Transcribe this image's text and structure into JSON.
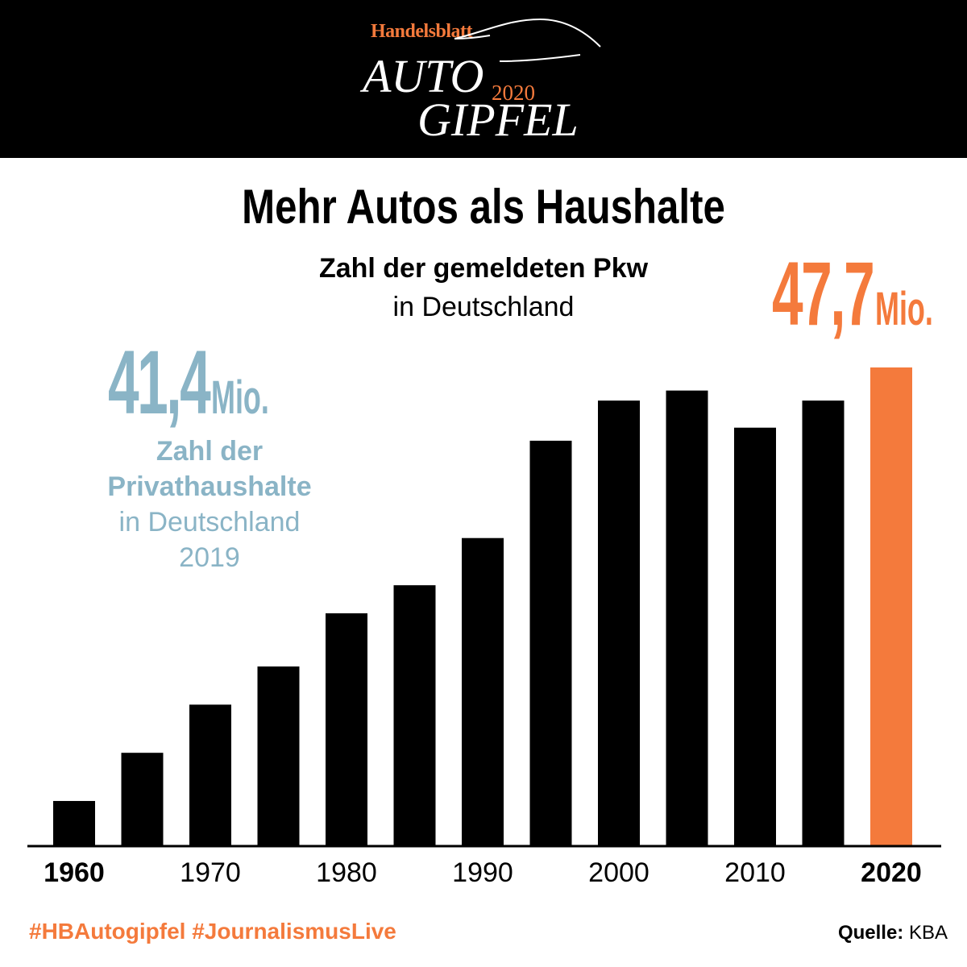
{
  "header": {
    "publisher": "Handelsblatt",
    "brand_line1": "AUTO",
    "brand_year": "2020",
    "brand_line2": "GIPFEL"
  },
  "title": "Mehr Autos als Haushalte",
  "subtitle_bold": "Zahl der gemeldeten Pkw",
  "subtitle_light": "in Deutschland",
  "highlight": {
    "value": "47,7",
    "unit": "Mio."
  },
  "households": {
    "value": "41,4",
    "unit": "Mio.",
    "label_line1": "Zahl der",
    "label_line2": "Privathaushalte",
    "label_line3": "in Deutschland",
    "label_line4": "2019"
  },
  "footer": {
    "hashtags": "#HBAutogipfel #JournalismusLive",
    "source_label": "Quelle:",
    "source_value": "KBA"
  },
  "colors": {
    "accent": "#f47a3c",
    "households": "#8ab4c6",
    "bar": "#000000",
    "header_bg": "#000000"
  },
  "chart_data": {
    "type": "bar",
    "x": [
      1960,
      1965,
      1970,
      1975,
      1980,
      1985,
      1990,
      1995,
      2000,
      2005,
      2010,
      2015,
      2020
    ],
    "values": [
      4.5,
      9.3,
      14.1,
      17.9,
      23.2,
      26.0,
      30.7,
      40.4,
      44.4,
      45.4,
      41.7,
      44.4,
      47.7
    ],
    "highlight_index": 12,
    "tick_labels": [
      {
        "x": 1960,
        "label": "1960",
        "bold": true
      },
      {
        "x": 1970,
        "label": "1970",
        "bold": false
      },
      {
        "x": 1980,
        "label": "1980",
        "bold": false
      },
      {
        "x": 1990,
        "label": "1990",
        "bold": false
      },
      {
        "x": 2000,
        "label": "2000",
        "bold": false
      },
      {
        "x": 2010,
        "label": "2010",
        "bold": false
      },
      {
        "x": 2020,
        "label": "2020",
        "bold": true
      }
    ],
    "ylim": [
      0,
      47.7
    ],
    "grid": false,
    "legend": "none"
  }
}
